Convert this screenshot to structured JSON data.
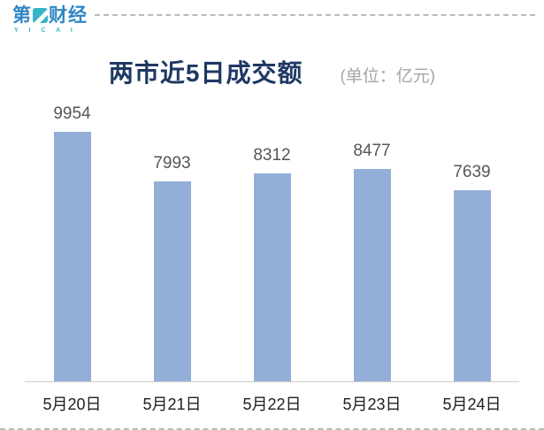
{
  "logo": {
    "brand_part1": "第",
    "brand_part2": "财经",
    "brand_sub": "Y I C A I",
    "brand_color": "#2f86c5",
    "accent_color": "#36b5c8"
  },
  "header": {
    "title": "两市近5日成交额",
    "unit": "(单位：亿元)",
    "title_color": "#1f3864",
    "unit_color": "#a6a6a6"
  },
  "chart_data": {
    "type": "bar",
    "title": "两市近5日成交额",
    "unit_label": "(单位：亿元)",
    "categories": [
      "5月20日",
      "5月21日",
      "5月22日",
      "5月23日",
      "5月24日"
    ],
    "values": [
      9954,
      7993,
      8312,
      8477,
      7639
    ],
    "xlabel": "",
    "ylabel": "亿元",
    "ylim": [
      0,
      10500
    ],
    "grid": false,
    "legend": "none",
    "bar_color": "#93afd7",
    "value_label_color": "#565656",
    "category_label_color": "#1e1e1e"
  }
}
